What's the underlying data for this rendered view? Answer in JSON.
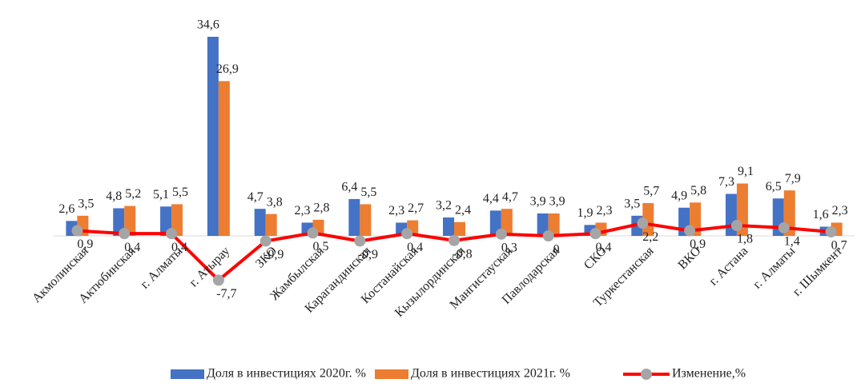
{
  "chart_data": {
    "type": "bar",
    "categories": [
      "Акмолинская",
      "Актюбинская",
      "г. Алматы",
      "г. Атырау",
      "ЗКО",
      "Жамбылская",
      "Карагандинская",
      "Костанайская",
      "Кызылординская",
      "Мангистауская",
      "Павлодарская",
      "СКО",
      "Туркестанская",
      "ВКО",
      "г. Астана",
      "г. Алматы",
      "г. Шымкент"
    ],
    "series": [
      {
        "name": "Доля в инвестициях 2020г. %",
        "type": "bar",
        "color": "#4472c4",
        "values": [
          2.6,
          4.8,
          5.1,
          34.6,
          4.7,
          2.3,
          6.4,
          2.3,
          3.2,
          4.4,
          3.9,
          1.9,
          3.5,
          4.9,
          7.3,
          6.5,
          1.6
        ],
        "value_labels": [
          "2,6",
          "4,8",
          "5,1",
          "34,6",
          "4,7",
          "2,3",
          "6,4",
          "2,3",
          "3,2",
          "4,4",
          "3,9",
          "1,9",
          "3,5",
          "4,9",
          "7,3",
          "6,5",
          "1,6"
        ]
      },
      {
        "name": "Доля в инвестициях 2021г. %",
        "type": "bar",
        "color": "#ed7d31",
        "values": [
          3.5,
          5.2,
          5.5,
          26.9,
          3.8,
          2.8,
          5.5,
          2.7,
          2.4,
          4.7,
          3.9,
          2.3,
          5.7,
          5.8,
          9.1,
          7.9,
          2.3
        ],
        "value_labels": [
          "3,5",
          "5,2",
          "5,5",
          "26,9",
          "3,8",
          "2,8",
          "5,5",
          "2,7",
          "2,4",
          "4,7",
          "3,9",
          "2,3",
          "5,7",
          "5,8",
          "9,1",
          "7,9",
          "2,3"
        ]
      },
      {
        "name": "Изменение,%",
        "type": "line",
        "color": "#ff0000",
        "marker_color": "#a5a5a5",
        "values": [
          0.9,
          0.4,
          0.4,
          -7.7,
          -0.9,
          0.5,
          -0.9,
          0.4,
          -0.8,
          0.3,
          0,
          0.4,
          2.2,
          0.9,
          1.8,
          1.4,
          0.7
        ],
        "value_labels": [
          "0,9",
          "0,4",
          "0,4",
          "-7,7",
          "-0,9",
          "0,5",
          "-0,9",
          "0,4",
          "-0,8",
          "0,3",
          "0",
          "0,4",
          "2,2",
          "0,9",
          "1,8",
          "1,4",
          "0,7"
        ]
      }
    ],
    "legend": "bottom"
  }
}
